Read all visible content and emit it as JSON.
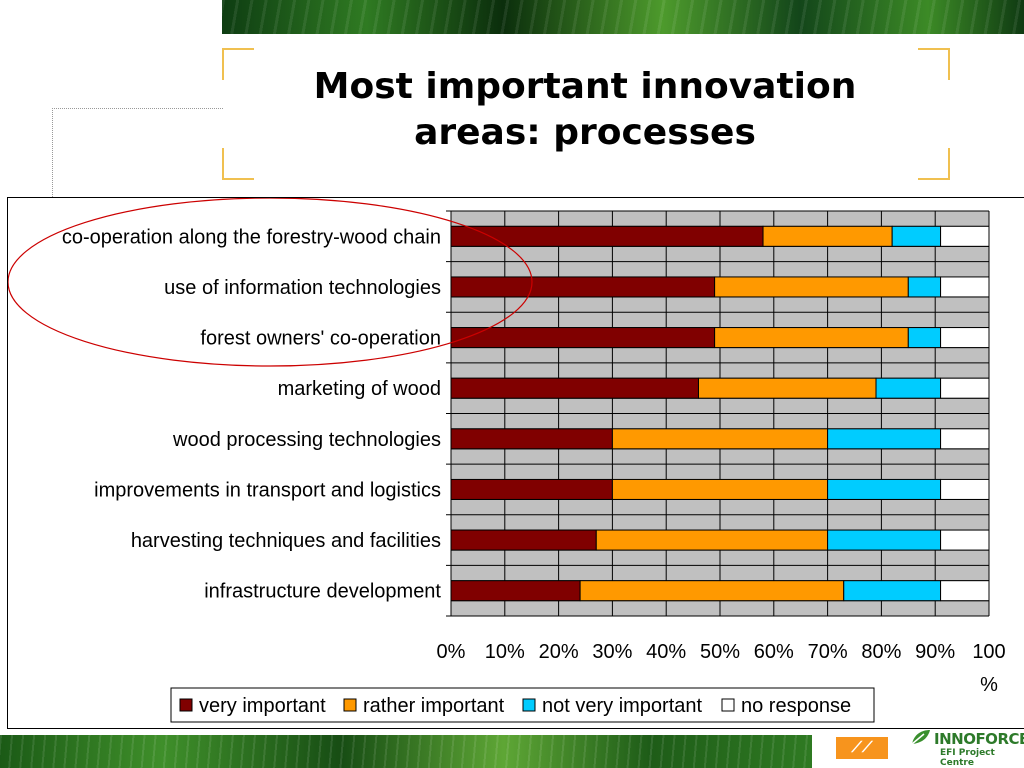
{
  "slide": {
    "title_line1": "Most important innovation",
    "title_line2": "areas: processes"
  },
  "brand": {
    "name": "INNOFORCE",
    "subtitle": "EFI Project Centre",
    "icon": "leaf-logo-icon"
  },
  "colors": {
    "very_important": "#800000",
    "rather_important": "#ff9900",
    "not_very_important": "#00ccff",
    "no_response": "#ffffff",
    "plot_background": "#c0c0c0",
    "highlight_ellipse": "#cc0000"
  },
  "chart_data": {
    "type": "bar",
    "orientation": "horizontal",
    "stacked": true,
    "categories": [
      "co-operation along the forestry-wood chain",
      "use of information technologies",
      "forest owners' co-operation",
      "marketing of wood",
      "wood processing technologies",
      "improvements in transport and logistics",
      "harvesting techniques and facilities",
      "infrastructure development"
    ],
    "series": [
      {
        "name": "very important",
        "values": [
          58,
          49,
          49,
          46,
          30,
          30,
          27,
          24
        ]
      },
      {
        "name": "rather important",
        "values": [
          24,
          36,
          36,
          33,
          40,
          40,
          43,
          49
        ]
      },
      {
        "name": "not very important",
        "values": [
          9,
          6,
          6,
          12,
          21,
          21,
          21,
          18
        ]
      },
      {
        "name": "no response",
        "values": [
          9,
          9,
          9,
          9,
          9,
          9,
          9,
          9
        ]
      }
    ],
    "xlim": [
      0,
      100
    ],
    "x_ticks": [
      "0%",
      "10%",
      "20%",
      "30%",
      "40%",
      "50%",
      "60%",
      "70%",
      "80%",
      "90%",
      "100 %"
    ],
    "xlabel": "",
    "ylabel": "",
    "grid": true,
    "legend_position": "bottom",
    "annotation": "red ellipse around top three categories"
  }
}
